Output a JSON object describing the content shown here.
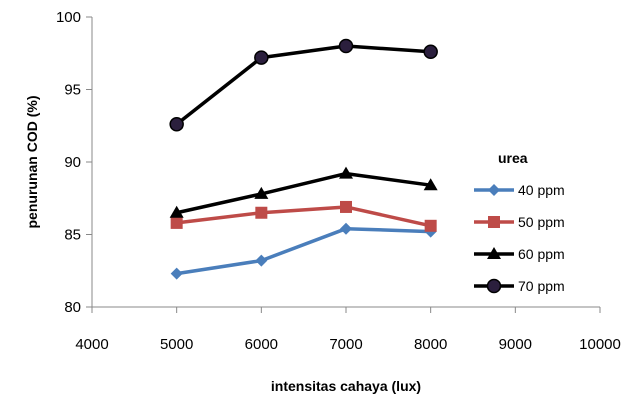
{
  "chart_data": {
    "type": "line",
    "title": "",
    "xlabel": "intensitas cahaya  (lux)",
    "ylabel": "penurunan COD (%)",
    "xlim": [
      4000,
      10000
    ],
    "ylim": [
      80,
      100
    ],
    "xticks": [
      4000,
      5000,
      6000,
      7000,
      8000,
      9000,
      10000
    ],
    "yticks": [
      80,
      85,
      90,
      95,
      100
    ],
    "grid": false,
    "legend_title": "urea",
    "legend_position": "right",
    "x": [
      5000,
      6000,
      7000,
      8000
    ],
    "series": [
      {
        "name": "40 ppm",
        "values": [
          82.3,
          83.2,
          85.4,
          85.2
        ],
        "color": "#4a7ebb",
        "marker": "diamond"
      },
      {
        "name": "50 ppm",
        "values": [
          85.8,
          86.5,
          86.9,
          85.6
        ],
        "color": "#be4b48",
        "marker": "square"
      },
      {
        "name": "60 ppm",
        "values": [
          86.5,
          87.8,
          89.2,
          88.4
        ],
        "color": "#000000",
        "marker": "triangle"
      },
      {
        "name": "70 ppm",
        "values": [
          92.6,
          97.2,
          98.0,
          97.6
        ],
        "color": "#000000",
        "marker": "circle",
        "marker_fill": "#2b1f3d"
      }
    ]
  }
}
